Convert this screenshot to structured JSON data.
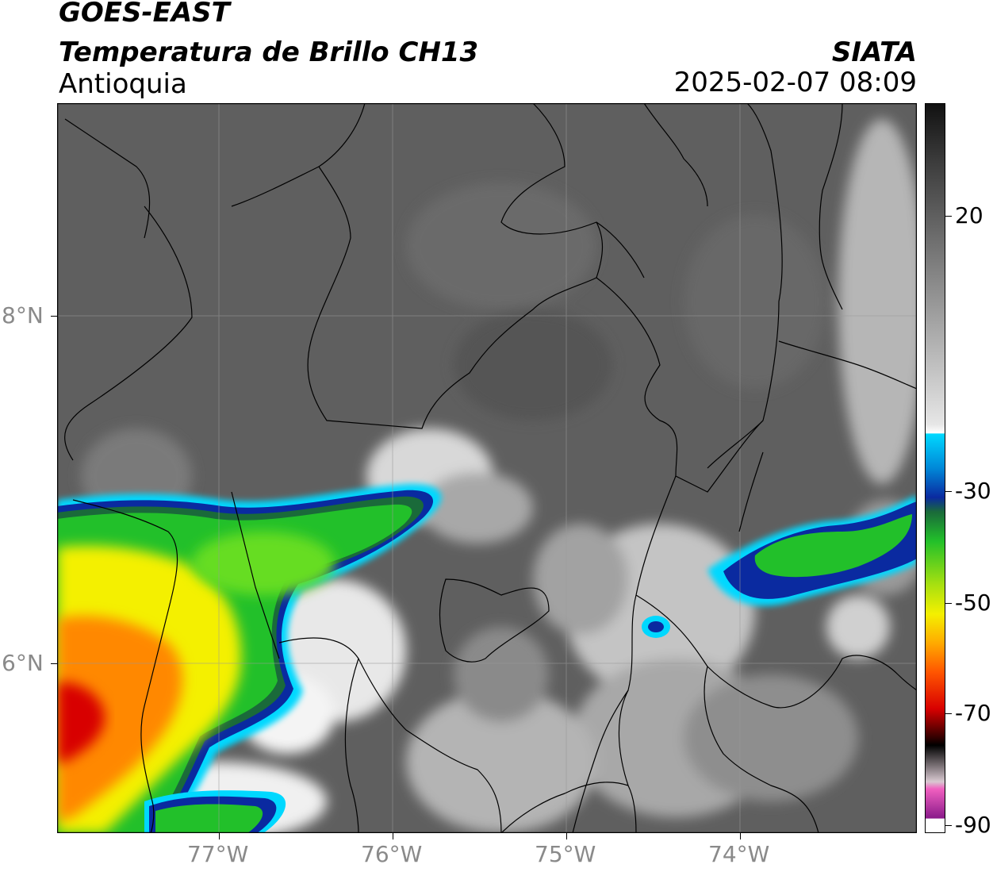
{
  "header": {
    "title_line1": "GOES-EAST",
    "title_line2": "Temperatura de Brillo CH13",
    "region": "Antioquia",
    "agency": "SIATA",
    "timestamp": "2025-02-07 08:09"
  },
  "map": {
    "lon_labels": [
      "77°W",
      "76°W",
      "75°W",
      "74°W"
    ],
    "lat_labels": [
      "8°N",
      "6°N"
    ],
    "extent": {
      "lon_min": -77.95,
      "lon_max": -73.0,
      "lat_min": 5.05,
      "lat_max": 9.25
    },
    "background_gray": "#5f5f5f",
    "border_color": "#000000",
    "gridline_color": "#9a9a9a"
  },
  "colorbar": {
    "tick_labels": [
      "20",
      "-30",
      "-50",
      "-70",
      "-90"
    ],
    "colors": {
      "warm": "#4a4a4a",
      "neutral": "#ffffff",
      "cyan": "#00d8ff",
      "blue": "#0a2aa0",
      "green": "#22c02a",
      "yellow": "#f4f000",
      "orange": "#ff8800",
      "red": "#d80000",
      "black": "#000000",
      "magenta": "#b030b8"
    }
  }
}
